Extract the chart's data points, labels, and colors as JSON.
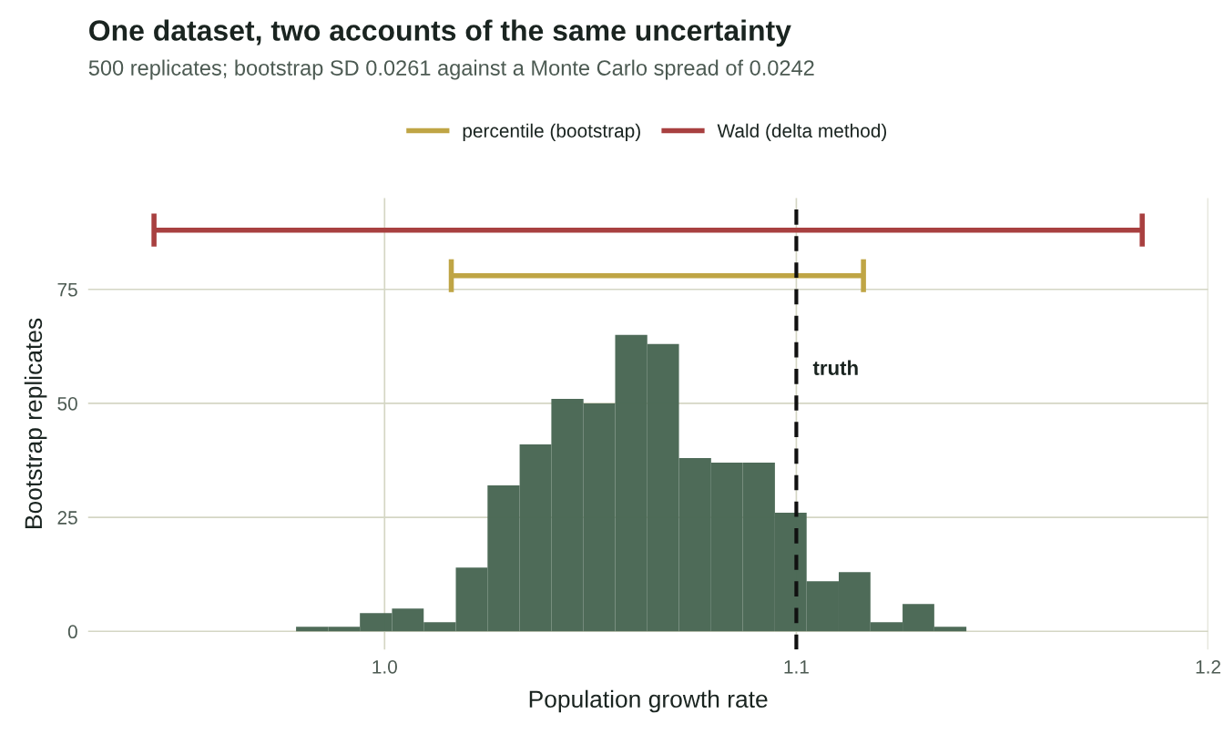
{
  "chart_data": {
    "type": "histogram",
    "title": "One dataset, two accounts of the same uncertainty",
    "subtitle": "500 replicates; bootstrap SD 0.0261 against a Monte Carlo spread of 0.0242",
    "xlabel": "Population growth rate",
    "ylabel": "Bootstrap replicates",
    "bins": [
      0.9785,
      0.9863,
      0.994,
      1.0018,
      1.0095,
      1.0173,
      1.025,
      1.0328,
      1.0405,
      1.0483,
      1.056,
      1.0638,
      1.0715,
      1.0793,
      1.087,
      1.0948,
      1.1025,
      1.1103,
      1.118,
      1.1258,
      1.1335,
      1.1413
    ],
    "values": [
      1,
      1,
      4,
      5,
      2,
      14,
      32,
      41,
      51,
      50,
      65,
      63,
      38,
      37,
      37,
      26,
      11,
      13,
      2,
      6,
      1
    ],
    "color": "#4a6855",
    "series": [
      {
        "name": "percentile (bootstrap)",
        "type": "line",
        "color": "#bfa545",
        "x": [
          1.0162,
          1.1163
        ],
        "values": [
          78,
          78
        ]
      },
      {
        "name": "Wald (delta method)",
        "type": "line",
        "color": "#a84040",
        "x": [
          0.944,
          1.184
        ],
        "values": [
          88,
          88
        ]
      }
    ],
    "ref_lines": [
      {
        "axis": "x",
        "value": 1.1,
        "label": "truth",
        "color": "#111111",
        "line_style": "dashed"
      }
    ],
    "xlim": [
      0.928,
      1.2
    ],
    "xticks": [
      {
        "value": 1.0,
        "label": "1.0"
      },
      1.1,
      1.2
    ],
    "ylim": [
      -4,
      95
    ],
    "yticks": [
      0,
      25,
      50,
      75
    ],
    "grid": true,
    "legend": "top"
  }
}
